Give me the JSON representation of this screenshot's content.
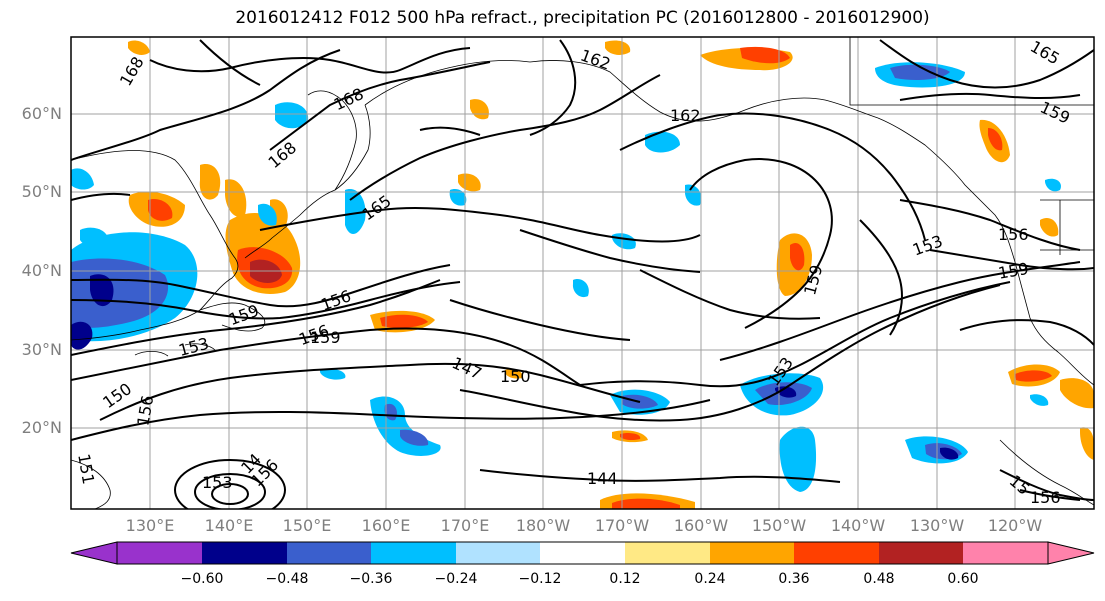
{
  "title": "2016012412 F012 500 hPa refract., precipitation PC (2016012800 - 2016012900)",
  "map": {
    "region": "North Pacific",
    "lon_range": [
      "120°E",
      "115°W"
    ],
    "lat_range": [
      "10°N",
      "70°N"
    ],
    "gridlines": true
  },
  "axes": {
    "lat_labels": [
      "60°N",
      "50°N",
      "40°N",
      "30°N",
      "20°N"
    ],
    "lon_labels": [
      "130°E",
      "140°E",
      "150°E",
      "160°E",
      "170°E",
      "180°W",
      "170°W",
      "160°W",
      "150°W",
      "140°W",
      "130°W",
      "120°W"
    ]
  },
  "contour_labels": [
    {
      "text": "168"
    },
    {
      "text": "168"
    },
    {
      "text": "168"
    },
    {
      "text": "165"
    },
    {
      "text": "162"
    },
    {
      "text": "162"
    },
    {
      "text": "165"
    },
    {
      "text": "156"
    },
    {
      "text": "159"
    },
    {
      "text": "159"
    },
    {
      "text": "153"
    },
    {
      "text": "156"
    },
    {
      "text": "159"
    },
    {
      "text": "150"
    },
    {
      "text": "147"
    },
    {
      "text": "150"
    },
    {
      "text": "156"
    },
    {
      "text": "153"
    },
    {
      "text": "159"
    },
    {
      "text": "153"
    },
    {
      "text": "156"
    },
    {
      "text": "159"
    },
    {
      "text": "151"
    },
    {
      "text": "144"
    },
    {
      "text": "153"
    },
    {
      "text": "156"
    },
    {
      "text": "14"
    },
    {
      "text": "15"
    },
    {
      "text": "156"
    }
  ],
  "colorbar": {
    "labels": [
      "−0.60",
      "−0.48",
      "−0.36",
      "−0.24",
      "−0.12",
      "0.12",
      "0.24",
      "0.36",
      "0.48",
      "0.60"
    ],
    "colors": [
      "#9932cc",
      "#00008b",
      "#3a5fcd",
      "#00bfff",
      "#b0e2ff",
      "#ffffff",
      "#ffe985",
      "#ffa500",
      "#ff4000",
      "#b22222",
      "#ff82ab"
    ]
  },
  "colors": {
    "dark_blue": "#00008b",
    "mid_blue": "#3a5fcd",
    "sky_blue": "#00bfff",
    "light_blue": "#b0e2ff",
    "light_yellow": "#ffe985",
    "orange": "#ffa500",
    "red_orange": "#ff4000",
    "dark_red": "#b22222",
    "grid": "#a0a0a0",
    "label_grey": "#7f7f7f"
  }
}
